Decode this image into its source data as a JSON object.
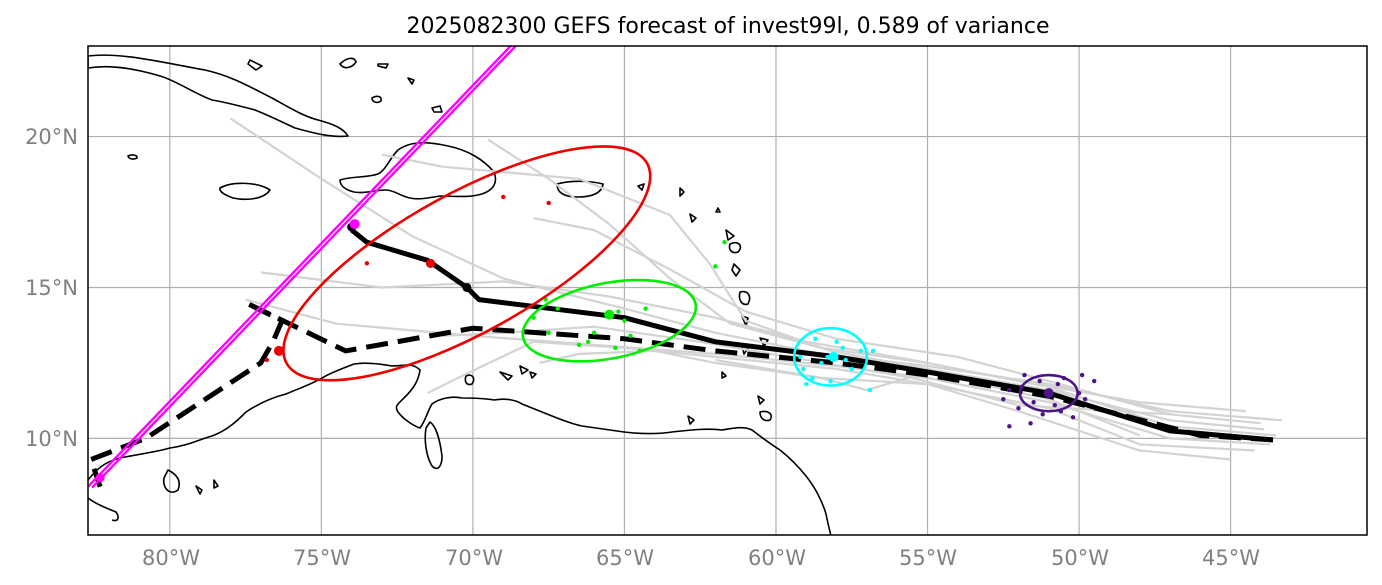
{
  "title": "2025082300 GEFS forecast of invest99l, 0.589 of variance",
  "x_ticks": [
    "80°W",
    "75°W",
    "70°W",
    "65°W",
    "60°W",
    "55°W",
    "50°W",
    "45°W"
  ],
  "y_ticks": [
    "20°N",
    "15°N",
    "10°N"
  ],
  "chart_data": {
    "type": "map-track",
    "title": "2025082300 GEFS forecast of invest99l, 0.589 of variance",
    "lon_range": [
      -82.7,
      -40.5
    ],
    "lat_range": [
      6.8,
      23.0
    ],
    "lon_ticks": [
      -80,
      -75,
      -70,
      -65,
      -60,
      -55,
      -50,
      -45
    ],
    "lat_ticks": [
      20,
      15,
      10
    ],
    "grid": true,
    "mean_track": [
      [
        -43.6,
        9.95
      ],
      [
        -47,
        10.25
      ],
      [
        -51,
        11.5
      ],
      [
        -55,
        12.2
      ],
      [
        -58,
        12.7
      ],
      [
        -62,
        13.2
      ],
      [
        -65,
        14.0
      ],
      [
        -69.8,
        14.6
      ],
      [
        -70.2,
        15.0
      ],
      [
        -71.5,
        15.9
      ],
      [
        -73.5,
        16.5
      ],
      [
        -74,
        16.9
      ]
    ],
    "control_track": [
      [
        -43.6,
        9.95
      ],
      [
        -46,
        10.1
      ],
      [
        -51,
        11.4
      ],
      [
        -55,
        12.1
      ],
      [
        -58,
        12.5
      ],
      [
        -62,
        12.9
      ],
      [
        -65,
        13.3
      ],
      [
        -70,
        13.65
      ],
      [
        -74.2,
        12.9
      ],
      [
        -77.5,
        14.5
      ],
      [
        -76.3,
        13.9
      ],
      [
        -76.6,
        13.2
      ],
      [
        -77,
        12.5
      ],
      [
        -80.8,
        10.0
      ],
      [
        -82.6,
        9.3
      ],
      [
        -82.3,
        8.4
      ]
    ],
    "members": [
      [
        [
          -43.3,
          10.6
        ],
        [
          -47,
          10.9
        ],
        [
          -51,
          11.8
        ],
        [
          -55,
          12.4
        ],
        [
          -58.5,
          12.8
        ],
        [
          -62,
          13.5
        ],
        [
          -65,
          14.3
        ],
        [
          -69,
          15.3
        ],
        [
          -72,
          16.7
        ],
        [
          -75,
          18.6
        ],
        [
          -78,
          20.6
        ]
      ],
      [
        [
          -43.5,
          10.1
        ],
        [
          -47,
          10.4
        ],
        [
          -51,
          11.7
        ],
        [
          -55,
          12.5
        ],
        [
          -58.5,
          13.0
        ],
        [
          -61.5,
          13.8
        ],
        [
          -63.5,
          15.3
        ],
        [
          -65.5,
          17.1
        ],
        [
          -67.5,
          18.6
        ],
        [
          -69.5,
          19.9
        ]
      ],
      [
        [
          -43.7,
          9.8
        ],
        [
          -47,
          10.0
        ],
        [
          -51,
          11.2
        ],
        [
          -55,
          12.0
        ],
        [
          -58,
          12.4
        ],
        [
          -62,
          12.8
        ],
        [
          -66,
          13.1
        ],
        [
          -70,
          13.4
        ],
        [
          -74.5,
          13.8
        ],
        [
          -77.5,
          14.6
        ]
      ],
      [
        [
          -43.9,
          10.3
        ],
        [
          -47,
          10.6
        ],
        [
          -51,
          11.6
        ],
        [
          -55,
          12.3
        ],
        [
          -58.2,
          12.9
        ],
        [
          -61,
          13.9
        ],
        [
          -62.2,
          15.8
        ],
        [
          -63.5,
          17.4
        ],
        [
          -66.5,
          18.6
        ],
        [
          -71,
          19.0
        ],
        [
          -73,
          19.4
        ]
      ],
      [
        [
          -44.2,
          9.6
        ],
        [
          -48,
          9.8
        ],
        [
          -51,
          11.0
        ],
        [
          -55,
          11.8
        ],
        [
          -58,
          12.3
        ],
        [
          -62,
          12.7
        ],
        [
          -65,
          13.0
        ],
        [
          -68,
          13.2
        ],
        [
          -70.5,
          12.0
        ],
        [
          -71.5,
          11.5
        ]
      ],
      [
        [
          -44.5,
          10.9
        ],
        [
          -48,
          11.2
        ],
        [
          -52,
          11.9
        ],
        [
          -55.5,
          12.6
        ],
        [
          -59,
          13.2
        ],
        [
          -62,
          14.0
        ],
        [
          -65.5,
          14.7
        ],
        [
          -69,
          15.2
        ],
        [
          -73,
          15.0
        ],
        [
          -77,
          15.5
        ]
      ],
      [
        [
          -45,
          9.3
        ],
        [
          -48,
          9.6
        ],
        [
          -52,
          10.9
        ],
        [
          -55,
          11.8
        ],
        [
          -58.5,
          12.0
        ],
        [
          -62,
          12.5
        ],
        [
          -64,
          12.9
        ],
        [
          -66.5,
          12.8
        ],
        [
          -67.8,
          12.5
        ]
      ],
      [
        [
          -44,
          10.5
        ],
        [
          -47,
          10.8
        ],
        [
          -51,
          11.9
        ],
        [
          -54,
          12.7
        ],
        [
          -58,
          13.3
        ],
        [
          -61,
          14.2
        ],
        [
          -63.5,
          15.6
        ],
        [
          -66,
          16.9
        ],
        [
          -68,
          17.3
        ]
      ],
      [
        [
          -47,
          10.8
        ],
        [
          -52,
          11.1
        ],
        [
          -55.5,
          12.0
        ],
        [
          -59,
          12.6
        ],
        [
          -62.5,
          13.2
        ],
        [
          -66,
          13.7
        ],
        [
          -69,
          13.5
        ],
        [
          -71,
          13.4
        ]
      ],
      [
        [
          -48,
          10.1
        ],
        [
          -51,
          11.3
        ],
        [
          -55,
          12.2
        ],
        [
          -57,
          11.6
        ],
        [
          -58.5,
          12.0
        ],
        [
          -62,
          12.6
        ]
      ]
    ],
    "mean_track_markers": [
      [
        -74,
        17.0
      ],
      [
        -71.4,
        15.8
      ],
      [
        -70.2,
        15.0
      ]
    ],
    "control_track_markers": [
      [
        -82.3,
        8.6
      ],
      [
        -82.6,
        9.3
      ]
    ],
    "clusters": [
      {
        "color": "#4b1488",
        "center": [
          -51,
          11.5
        ],
        "radius": [
          0.95,
          0.6
        ],
        "rotation": 0,
        "points": [
          [
            -51.5,
            11.2
          ],
          [
            -50.7,
            11.8
          ],
          [
            -52.3,
            11.6
          ],
          [
            -49.8,
            11.3
          ],
          [
            -51.2,
            10.8
          ],
          [
            -50.5,
            12.0
          ],
          [
            -52.0,
            11.0
          ],
          [
            -49.5,
            11.9
          ],
          [
            -51.8,
            12.1
          ],
          [
            -50.2,
            10.7
          ],
          [
            -52.5,
            11.3
          ],
          [
            -51.0,
            11.5
          ],
          [
            -50.8,
            11.1
          ],
          [
            -49.9,
            12.1
          ],
          [
            -51.6,
            10.5
          ],
          [
            -52.3,
            10.4
          ],
          [
            -51.3,
            11.9
          ],
          [
            -50.0,
            11.5
          ],
          [
            -50.6,
            10.9
          ],
          [
            -51.9,
            11.7
          ]
        ],
        "mean": [
          -51.0,
          11.5
        ]
      },
      {
        "color": "#00ffff",
        "center": [
          -58.2,
          12.7
        ],
        "radius": [
          1.2,
          0.95
        ],
        "rotation": 0,
        "points": [
          [
            -58.5,
            12.5
          ],
          [
            -57.8,
            13.0
          ],
          [
            -58.8,
            12.0
          ],
          [
            -58.0,
            13.2
          ],
          [
            -57.2,
            12.9
          ],
          [
            -59.0,
            11.8
          ],
          [
            -58.3,
            12.7
          ],
          [
            -57.5,
            12.3
          ],
          [
            -56.8,
            12.9
          ],
          [
            -59.2,
            12.7
          ],
          [
            -56.9,
            11.6
          ],
          [
            -58.2,
            11.9
          ],
          [
            -57.7,
            12.6
          ],
          [
            -58.7,
            13.3
          ],
          [
            -59.1,
            12.3
          ]
        ],
        "mean": [
          -58.1,
          12.7
        ]
      },
      {
        "color": "#00ee00",
        "center": [
          -65.5,
          13.9
        ],
        "radius": [
          2.9,
          1.25
        ],
        "rotation": -11,
        "points": [
          [
            -67.5,
            13.5
          ],
          [
            -66.5,
            13.1
          ],
          [
            -65.2,
            14.2
          ],
          [
            -64.3,
            14.3
          ],
          [
            -67.6,
            14.6
          ],
          [
            -66.2,
            13.2
          ],
          [
            -65.0,
            13.9
          ],
          [
            -67.2,
            14.3
          ],
          [
            -62.0,
            15.7
          ],
          [
            -61.7,
            16.5
          ],
          [
            -64.5,
            12.9
          ],
          [
            -65.3,
            13.0
          ],
          [
            -66.0,
            13.5
          ],
          [
            -68.0,
            14.0
          ],
          [
            -65.6,
            14.1
          ],
          [
            -64.8,
            13.4
          ]
        ],
        "mean": [
          -65.5,
          14.1
        ]
      },
      {
        "color": "#ee0000",
        "center": [
          -70.2,
          15.8
        ],
        "radius": [
          6.8,
          2.3
        ],
        "rotation": -29,
        "points": [
          [
            -76.4,
            12.9
          ],
          [
            -76.8,
            12.6
          ],
          [
            -73.5,
            15.8
          ],
          [
            -71.4,
            15.8
          ],
          [
            -69.0,
            18.0
          ],
          [
            -67.5,
            17.8
          ]
        ],
        "mean": [
          -76.4,
          12.9
        ]
      }
    ],
    "reference_line": {
      "color": "#ff00ff",
      "from": [
        -82.7,
        8.4
      ],
      "to": [
        -67.8,
        24.0
      ]
    }
  }
}
